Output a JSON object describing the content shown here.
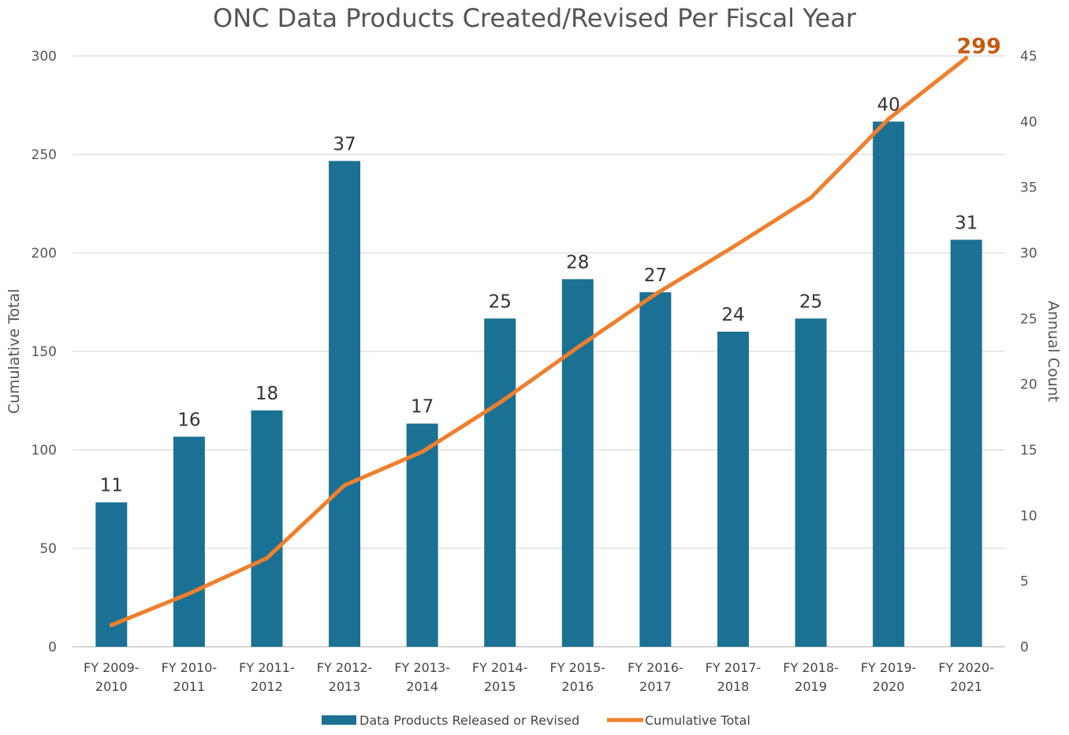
{
  "chart_data": {
    "type": "bar+line",
    "title": "ONC Data Products Created/Revised Per Fiscal Year",
    "categories": [
      [
        "FY 2009-",
        "2010"
      ],
      [
        "FY 2010-",
        "2011"
      ],
      [
        "FY 2011-",
        "2012"
      ],
      [
        "FY 2012-",
        "2013"
      ],
      [
        "FY 2013-",
        "2014"
      ],
      [
        "FY 2014-",
        "2015"
      ],
      [
        "FY 2015-",
        "2016"
      ],
      [
        "FY 2016-",
        "2017"
      ],
      [
        "FY 2017-",
        "2018"
      ],
      [
        "FY 2018-",
        "2019"
      ],
      [
        "FY 2019-",
        "2020"
      ],
      [
        "FY 2020-",
        "2021"
      ]
    ],
    "series": [
      {
        "name": "Data Products Released or Revised",
        "type": "bar",
        "axis": "right",
        "color": "#1b7193",
        "values": [
          11,
          16,
          18,
          37,
          17,
          25,
          28,
          27,
          24,
          25,
          40,
          31
        ]
      },
      {
        "name": "Cumulative Total",
        "type": "line",
        "axis": "left",
        "color": "#f07f2c",
        "values": [
          11,
          27,
          45,
          82,
          99,
          124,
          152,
          179,
          203,
          228,
          268,
          299
        ]
      }
    ],
    "ylabel_left": "Cumulative Total",
    "ylabel_right": "Annual Count",
    "ylim_left": [
      0,
      300
    ],
    "yticks_left": [
      0,
      50,
      100,
      150,
      200,
      250,
      300
    ],
    "ylim_right": [
      0,
      45
    ],
    "yticks_right": [
      0,
      5,
      10,
      15,
      20,
      25,
      30,
      35,
      40,
      45
    ],
    "final_label": "299",
    "final_label_color": "#c55a11",
    "grid": true,
    "legend_position": "bottom"
  }
}
